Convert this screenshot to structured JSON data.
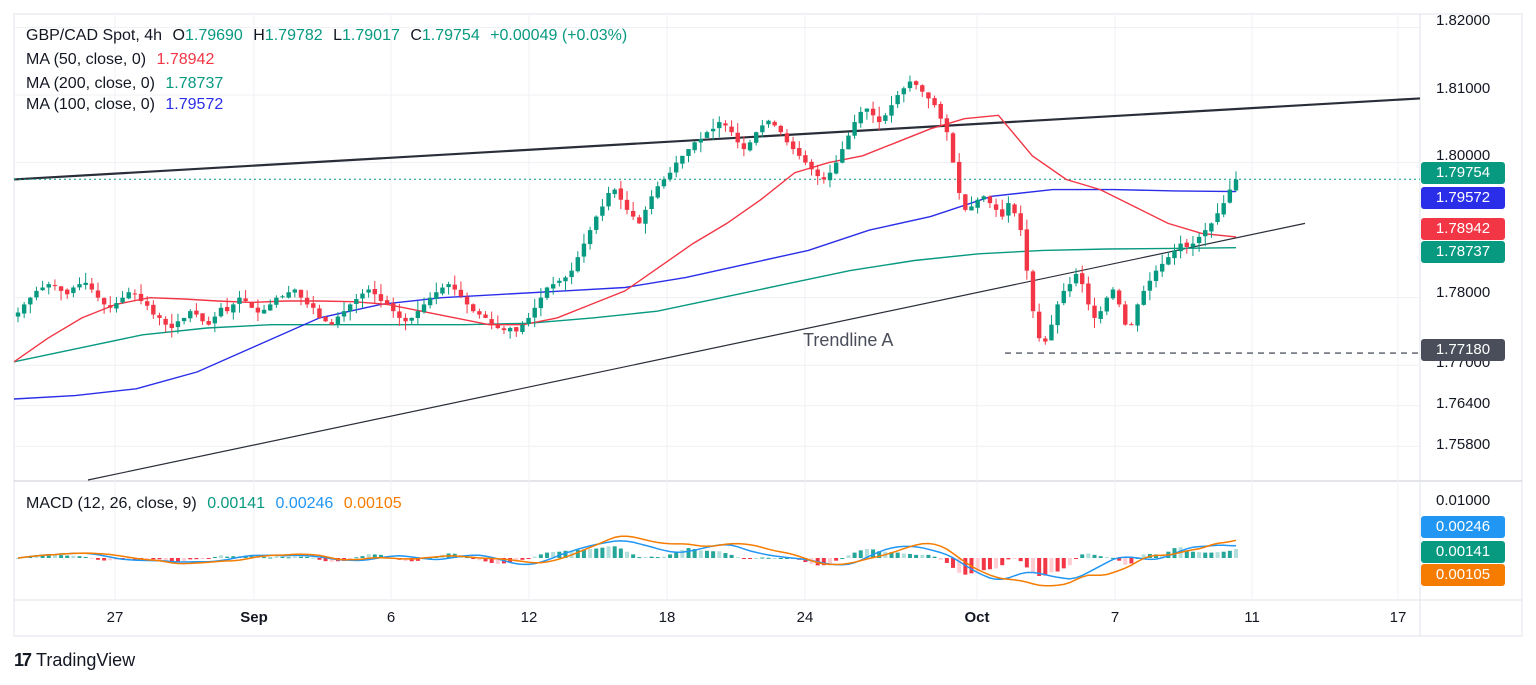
{
  "header": {
    "symbol": "GBP/CAD Spot, 4h",
    "open_label": "O",
    "open": "1.79690",
    "high_label": "H",
    "high": "1.79782",
    "low_label": "L",
    "low": "1.79017",
    "close_label": "C",
    "close": "1.79754",
    "change": "+0.00049 (+0.03%)"
  },
  "indicators": {
    "ma50": {
      "label": "MA (50, close, 0)",
      "value": "1.78942",
      "color": "#f23645"
    },
    "ma200": {
      "label": "MA (200, close, 0)",
      "value": "1.78737",
      "color": "#089981"
    },
    "ma100": {
      "label": "MA (100, close, 0)",
      "value": "1.79572",
      "color": "#2a2ee8"
    },
    "macd": {
      "label": "MACD (12, 26, close, 9)",
      "hist": "0.00141",
      "macd": "0.00246",
      "signal": "0.00105",
      "hist_color": "#089981",
      "macd_color": "#2196f3",
      "signal_color": "#f57c00"
    }
  },
  "price_tags": {
    "last": "1.79754",
    "ma100": "1.79572",
    "ma50": "1.78942",
    "ma200": "1.78737",
    "support": "1.77180",
    "macd": "0.00246",
    "hist": "0.00141",
    "signal": "0.00105"
  },
  "price_axis": [
    "1.82000",
    "1.81000",
    "1.80000",
    "1.78000",
    "1.77000",
    "1.76400",
    "1.75800"
  ],
  "macd_axis": [
    "0.01000"
  ],
  "date_axis": [
    "27",
    "Sep",
    "6",
    "12",
    "18",
    "24",
    "Oct",
    "7",
    "11",
    "17"
  ],
  "annotation": "Trendline A",
  "brand": "TradingView",
  "colors": {
    "up": "#089981",
    "down": "#f23645",
    "trendline": "#2a2e39",
    "support": "#2a2e39"
  },
  "chart_data": {
    "type": "candlestick",
    "title": "GBP/CAD Spot, 4h",
    "ylim": [
      1.753,
      1.822
    ],
    "x_dates": [
      "27",
      "Sep",
      "6",
      "12",
      "18",
      "24",
      "Oct",
      "7",
      "11",
      "17"
    ],
    "close_path": [
      1.7778,
      1.779,
      1.78,
      1.781,
      1.7815,
      1.782,
      1.7818,
      1.781,
      1.7805,
      1.7815,
      1.782,
      1.7822,
      1.7812,
      1.78,
      1.779,
      1.7785,
      1.7792,
      1.78,
      1.7808,
      1.7805,
      1.7795,
      1.7788,
      1.7775,
      1.777,
      1.776,
      1.7755,
      1.7765,
      1.777,
      1.778,
      1.7775,
      1.7765,
      1.776,
      1.7772,
      1.7785,
      1.778,
      1.779,
      1.78,
      1.7795,
      1.7785,
      1.7778,
      1.7782,
      1.779,
      1.78,
      1.7802,
      1.7808,
      1.7812,
      1.78,
      1.779,
      1.7785,
      1.777,
      1.7765,
      1.776,
      1.7772,
      1.778,
      1.779,
      1.7798,
      1.7806,
      1.7812,
      1.7805,
      1.7795,
      1.779,
      1.778,
      1.777,
      1.7765,
      1.777,
      1.778,
      1.779,
      1.78,
      1.7808,
      1.7815,
      1.782,
      1.7812,
      1.7802,
      1.779,
      1.778,
      1.7775,
      1.777,
      1.776,
      1.7755,
      1.7752,
      1.7755,
      1.775,
      1.776,
      1.777,
      1.7785,
      1.78,
      1.7815,
      1.782,
      1.7825,
      1.783,
      1.784,
      1.786,
      1.788,
      1.79,
      1.792,
      1.7935,
      1.7955,
      1.796,
      1.7945,
      1.793,
      1.792,
      1.791,
      1.793,
      1.795,
      1.7965,
      1.7975,
      1.7985,
      1.8,
      1.801,
      1.802,
      1.803,
      1.8035,
      1.8045,
      1.805,
      1.806,
      1.8055,
      1.8045,
      1.803,
      1.802,
      1.803,
      1.8045,
      1.8055,
      1.8062,
      1.8055,
      1.8045,
      1.803,
      1.802,
      1.801,
      1.8,
      1.799,
      1.798,
      1.7975,
      1.7985,
      1.8,
      1.802,
      1.804,
      1.806,
      1.8075,
      1.808,
      1.807,
      1.806,
      1.807,
      1.8085,
      1.81,
      1.811,
      1.812,
      1.8115,
      1.8105,
      1.8095,
      1.8085,
      1.8065,
      1.8045,
      1.8,
      1.7955,
      1.793,
      1.7935,
      1.7945,
      1.795,
      1.794,
      1.793,
      1.792,
      1.794,
      1.7925,
      1.79,
      1.784,
      1.778,
      1.774,
      1.7735,
      1.776,
      1.779,
      1.781,
      1.782,
      1.7835,
      1.782,
      1.779,
      1.777,
      1.778,
      1.78,
      1.7812,
      1.779,
      1.776,
      1.776,
      1.779,
      1.781,
      1.7825,
      1.784,
      1.785,
      1.786,
      1.787,
      1.788,
      1.7875,
      1.788,
      1.789,
      1.79,
      1.791,
      1.7925,
      1.794,
      1.796,
      1.7975
    ],
    "ma50_path": [
      1.7705,
      1.774,
      1.777,
      1.779,
      1.78,
      1.7798,
      1.7795,
      1.7793,
      1.7795,
      1.7795,
      1.7794,
      1.779,
      1.778,
      1.777,
      1.776,
      1.776,
      1.777,
      1.779,
      1.781,
      1.7845,
      1.788,
      1.791,
      1.7945,
      1.7985,
      1.8,
      1.801,
      1.803,
      1.805,
      1.8065,
      1.807,
      1.801,
      1.7975,
      1.796,
      1.7935,
      1.791,
      1.7895,
      1.789
    ],
    "ma100_path": [
      1.765,
      1.7655,
      1.7665,
      1.769,
      1.773,
      1.777,
      1.779,
      1.78,
      1.7805,
      1.781,
      1.7815,
      1.783,
      1.785,
      1.787,
      1.79,
      1.792,
      1.795,
      1.796,
      1.796,
      1.7958,
      1.7957
    ],
    "ma200_path": [
      1.7705,
      1.7725,
      1.7745,
      1.7755,
      1.776,
      1.776,
      1.776,
      1.776,
      1.7762,
      1.777,
      1.778,
      1.78,
      1.782,
      1.784,
      1.7855,
      1.7865,
      1.787,
      1.7872,
      1.7873,
      1.7874
    ],
    "upper_trendline": [
      [
        0,
        1.7975
      ],
      [
        1,
        1.8095
      ]
    ],
    "trendline_a": [
      [
        0,
        1.753
      ],
      [
        1,
        1.791
      ]
    ],
    "support_level": 1.7718,
    "last_price": 1.79754,
    "macd": {
      "histogram_last": 0.00141,
      "macd_last": 0.00246,
      "signal_last": 0.00105
    }
  }
}
